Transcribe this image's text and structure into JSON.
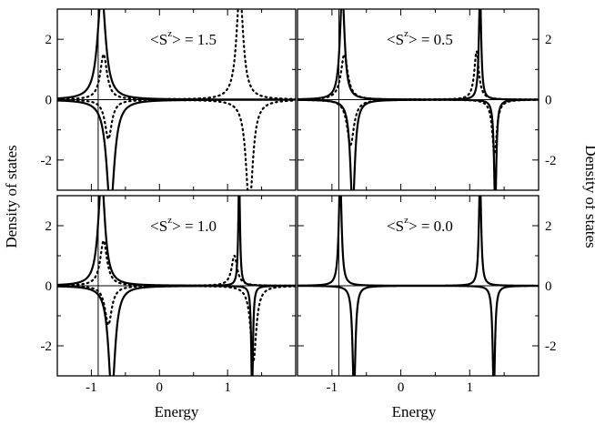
{
  "figure": {
    "ylabel_left": "Density of states",
    "ylabel_right": "Density of states",
    "xlabel": "Energy"
  },
  "chart_data": [
    {
      "type": "line",
      "title": "",
      "annotation": {
        "pre": "<S",
        "sup": "z",
        "post": "> = 1.5"
      },
      "xlim": [
        -1.5,
        2.0
      ],
      "ylim": [
        -3,
        3
      ],
      "xticks": [
        "-1",
        "0",
        "1"
      ],
      "yticks": [
        "-2",
        "0",
        "2"
      ],
      "vline_x": -0.9,
      "series": [
        {
          "style": "solid",
          "peaks": [
            {
              "center": -0.85,
              "amp": 3.6,
              "width": 0.07
            }
          ],
          "dip_peaks": [
            {
              "center": -0.72,
              "amp": -3.6,
              "width": 0.07
            }
          ]
        },
        {
          "style": "dotted",
          "peaks": [
            {
              "center": -0.82,
              "amp": 1.5,
              "width": 0.06
            },
            {
              "center": 1.18,
              "amp": 3.6,
              "width": 0.06
            }
          ],
          "dip_peaks": [
            {
              "center": -0.75,
              "amp": -1.3,
              "width": 0.06
            },
            {
              "center": 1.32,
              "amp": -3.6,
              "width": 0.06
            }
          ]
        }
      ]
    },
    {
      "type": "line",
      "title": "",
      "annotation": {
        "pre": "<S",
        "sup": "z",
        "post": "> = 0.5"
      },
      "xlim": [
        -1.5,
        2.0
      ],
      "ylim": [
        -3,
        3
      ],
      "xticks": [
        "-1",
        "0",
        "1"
      ],
      "yticks": [
        "-2",
        "0",
        "2"
      ],
      "vline_x": -0.9,
      "series": [
        {
          "style": "solid",
          "peaks": [
            {
              "center": -0.85,
              "amp": 3.6,
              "width": 0.04
            },
            {
              "center": 1.15,
              "amp": 3.6,
              "width": 0.02
            }
          ],
          "dip_peaks": [
            {
              "center": -0.7,
              "amp": -3.6,
              "width": 0.04
            },
            {
              "center": 1.37,
              "amp": -3.6,
              "width": 0.02
            }
          ]
        },
        {
          "style": "dotted",
          "peaks": [
            {
              "center": -0.82,
              "amp": 1.5,
              "width": 0.06
            },
            {
              "center": 1.1,
              "amp": 1.6,
              "width": 0.04
            }
          ],
          "dip_peaks": [
            {
              "center": -0.73,
              "amp": -1.5,
              "width": 0.06
            },
            {
              "center": 1.36,
              "amp": -1.8,
              "width": 0.04
            }
          ]
        }
      ]
    },
    {
      "type": "line",
      "title": "",
      "annotation": {
        "pre": "<S",
        "sup": "z",
        "post": "> = 1.0"
      },
      "xlim": [
        -1.5,
        2.0
      ],
      "ylim": [
        -3,
        3
      ],
      "xticks": [
        "-1",
        "0",
        "1"
      ],
      "yticks": [
        "-2",
        "0",
        "2"
      ],
      "vline_x": -0.9,
      "series": [
        {
          "style": "solid",
          "peaks": [
            {
              "center": -0.85,
              "amp": 3.6,
              "width": 0.06
            },
            {
              "center": 1.17,
              "amp": 3.6,
              "width": 0.015
            }
          ],
          "dip_peaks": [
            {
              "center": -0.7,
              "amp": -3.6,
              "width": 0.06
            },
            {
              "center": 1.36,
              "amp": -3.6,
              "width": 0.015
            }
          ]
        },
        {
          "style": "dotted",
          "peaks": [
            {
              "center": -0.82,
              "amp": 1.5,
              "width": 0.06
            },
            {
              "center": 1.1,
              "amp": 1.0,
              "width": 0.05
            }
          ],
          "dip_peaks": [
            {
              "center": -0.75,
              "amp": -1.3,
              "width": 0.06
            },
            {
              "center": 1.38,
              "amp": -2.5,
              "width": 0.05
            }
          ]
        }
      ]
    },
    {
      "type": "line",
      "title": "",
      "annotation": {
        "pre": "<S",
        "sup": "z",
        "post": "> = 0.0"
      },
      "xlim": [
        -1.5,
        2.0
      ],
      "ylim": [
        -3,
        3
      ],
      "xticks": [
        "-1",
        "0",
        "1"
      ],
      "yticks": [
        "-2",
        "0",
        "2"
      ],
      "vline_x": -0.9,
      "series": [
        {
          "style": "solid",
          "peaks": [
            {
              "center": -0.88,
              "amp": 3.6,
              "width": 0.025
            },
            {
              "center": 1.15,
              "amp": 3.6,
              "width": 0.02
            }
          ],
          "dip_peaks": [
            {
              "center": -0.68,
              "amp": -3.6,
              "width": 0.025
            },
            {
              "center": 1.35,
              "amp": -3.6,
              "width": 0.02
            }
          ]
        }
      ]
    }
  ]
}
